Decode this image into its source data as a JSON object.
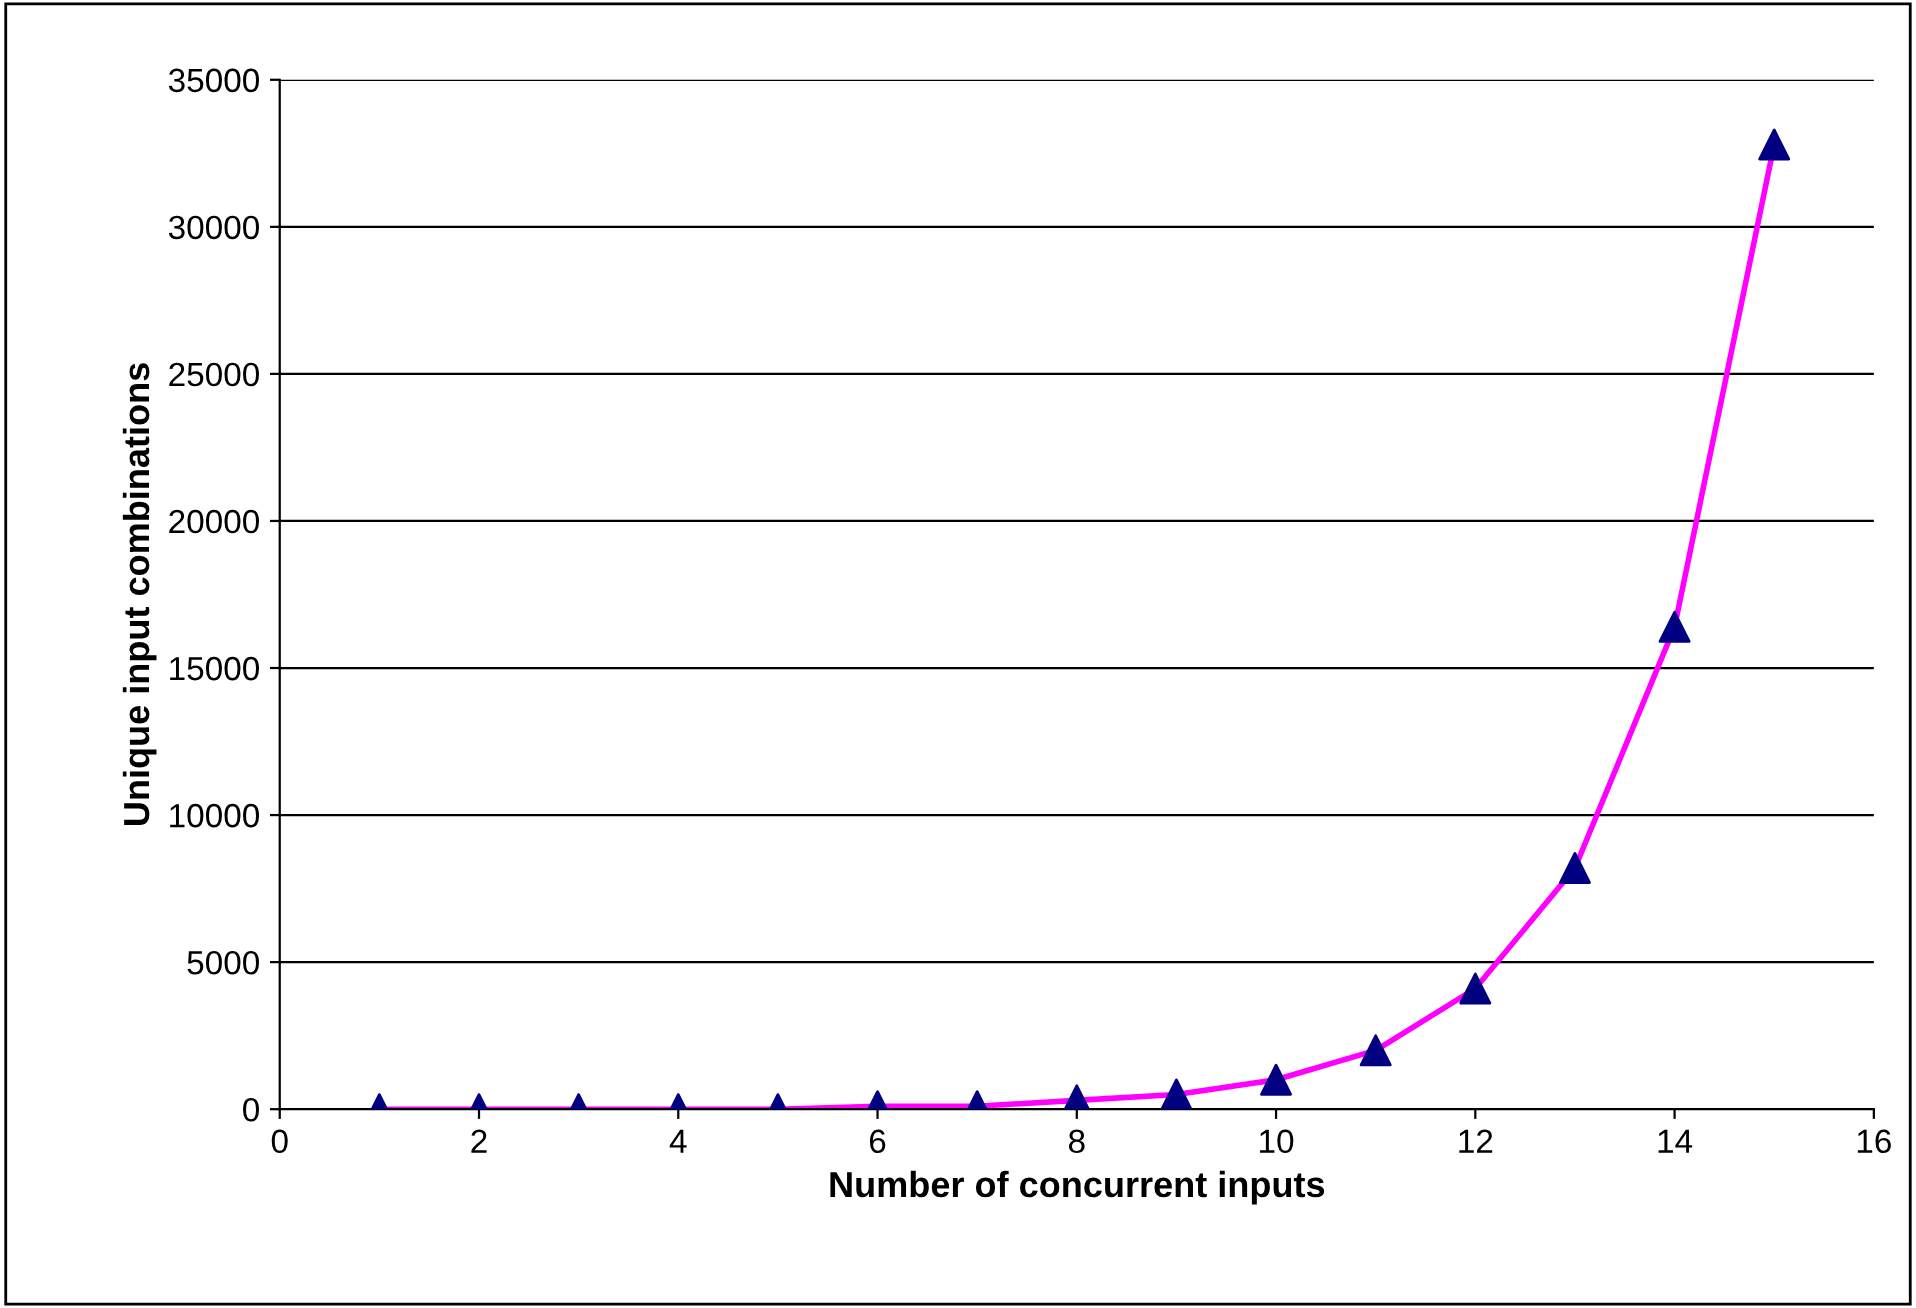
{
  "chart_data": {
    "type": "line",
    "xlabel": "Number of concurrent inputs",
    "ylabel": "Unique input combinations",
    "x": [
      1,
      2,
      3,
      4,
      5,
      6,
      7,
      8,
      9,
      10,
      11,
      12,
      13,
      14,
      15
    ],
    "series": [
      {
        "color": "#ff00ff",
        "marker": "none",
        "values": [
          0,
          0,
          0,
          0,
          0,
          100,
          100,
          300,
          500,
          1000,
          2000,
          4100,
          8200,
          16400,
          32800
        ]
      },
      {
        "type": "scatter",
        "color": "#000080",
        "marker": "triangle",
        "values": [
          0,
          0,
          0,
          0,
          0,
          100,
          100,
          300,
          500,
          1000,
          2000,
          4100,
          8200,
          16400,
          32800
        ]
      }
    ],
    "xlim": [
      0,
      16
    ],
    "xticks": [
      0,
      2,
      4,
      6,
      8,
      10,
      12,
      14,
      16
    ],
    "ylim": [
      0,
      35000
    ],
    "yticks": [
      0,
      5000,
      10000,
      15000,
      20000,
      25000,
      30000,
      35000
    ],
    "grid": "y"
  }
}
